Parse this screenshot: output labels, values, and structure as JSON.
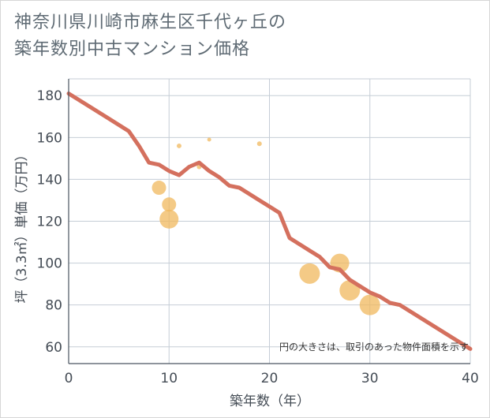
{
  "title_line1": "神奈川県川崎市麻生区千代ヶ丘の",
  "title_line2": "築年数別中古マンション価格",
  "chart_data": {
    "type": "scatter",
    "title": "神奈川県川崎市麻生区千代ヶ丘の築年数別中古マンション価格",
    "xlabel": "築年数（年）",
    "ylabel": "坪（3.3㎡）単価（万円）",
    "xlim": [
      0,
      40
    ],
    "ylim": [
      52,
      188
    ],
    "xticks": [
      0,
      10,
      20,
      30,
      40
    ],
    "yticks": [
      60,
      80,
      100,
      120,
      140,
      160,
      180
    ],
    "xtick_labels": [
      "0",
      "10",
      "20",
      "30",
      "40"
    ],
    "ytick_labels": [
      "60",
      "80",
      "100",
      "120",
      "140",
      "160",
      "180"
    ],
    "grid": true,
    "annotation": "円の大きさは、取引のあった物件面積を示す",
    "colors": {
      "bubble": "#f0b85e",
      "trend": "#d4705e",
      "grid": "#c5cdd6",
      "axis": "#4a5560"
    },
    "bubbles": [
      {
        "x": 9,
        "y": 136,
        "size": 9
      },
      {
        "x": 10,
        "y": 128,
        "size": 9
      },
      {
        "x": 10,
        "y": 121,
        "size": 12
      },
      {
        "x": 11,
        "y": 156,
        "size": 3
      },
      {
        "x": 13,
        "y": 146,
        "size": 3
      },
      {
        "x": 14,
        "y": 159,
        "size": 2.5
      },
      {
        "x": 19,
        "y": 157,
        "size": 3
      },
      {
        "x": 24,
        "y": 95,
        "size": 13
      },
      {
        "x": 27,
        "y": 100,
        "size": 12
      },
      {
        "x": 28,
        "y": 87,
        "size": 13
      },
      {
        "x": 30,
        "y": 80,
        "size": 13
      }
    ],
    "trend_line": {
      "x": [
        0,
        2,
        4,
        6,
        7,
        8,
        9,
        10,
        11,
        12,
        13,
        14,
        15,
        16,
        17,
        18,
        19,
        20,
        21,
        22,
        23,
        24,
        25,
        26,
        27,
        28,
        29,
        30,
        31,
        32,
        33,
        40
      ],
      "y": [
        181,
        175,
        169,
        163,
        156,
        148,
        147,
        144,
        142,
        146,
        148,
        144,
        141,
        137,
        136,
        133,
        130,
        127,
        124,
        112,
        109,
        106,
        103,
        98,
        97,
        92,
        89,
        86,
        84,
        81,
        80,
        59
      ]
    }
  }
}
